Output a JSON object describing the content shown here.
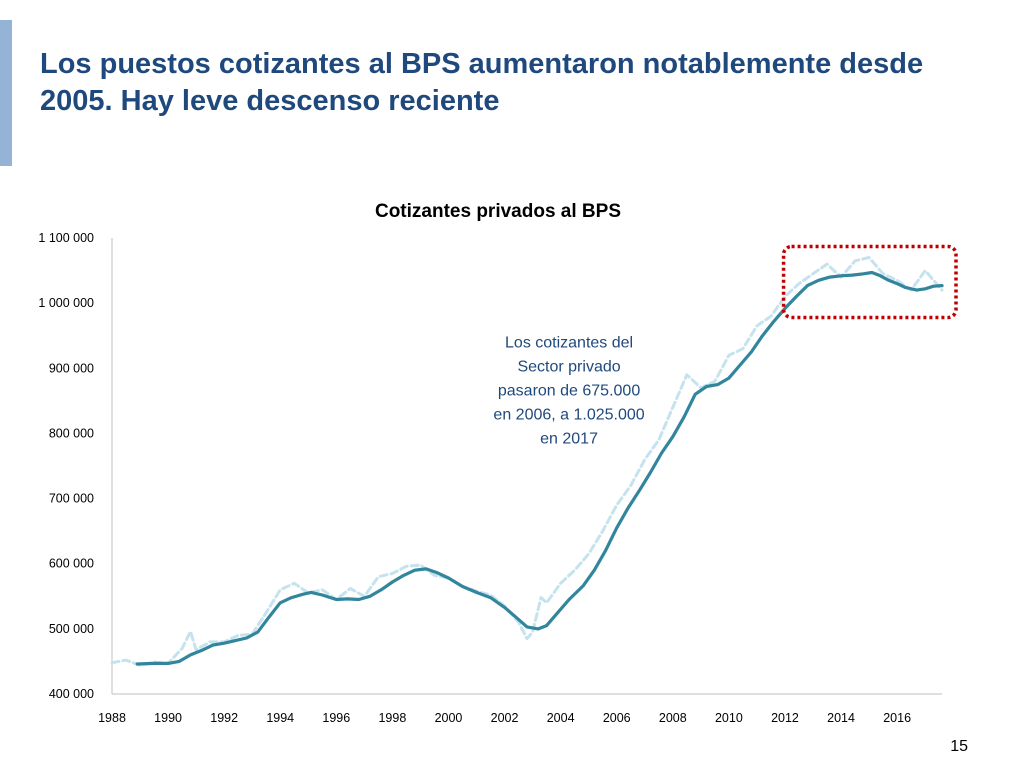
{
  "slide": {
    "title": "Los puestos cotizantes al BPS aumentaron notablemente desde 2005. Hay leve descenso reciente",
    "page_number": "15",
    "accent_color": "#95b3d7",
    "title_color": "#1f497d"
  },
  "chart_data": {
    "type": "line",
    "title": "Cotizantes privados al BPS",
    "xlabel": "",
    "ylabel": "",
    "xlim": [
      1988,
      2017.8
    ],
    "ylim": [
      400000,
      1100000
    ],
    "x_ticks": [
      1988,
      1990,
      1992,
      1994,
      1996,
      1998,
      2000,
      2002,
      2004,
      2006,
      2008,
      2010,
      2012,
      2014,
      2016
    ],
    "x_tick_labels": [
      "1988",
      "1990",
      "1992",
      "1994",
      "1996",
      "1998",
      "2000",
      "2002",
      "2004",
      "2006",
      "2008",
      "2010",
      "2012",
      "2014",
      "2016"
    ],
    "y_ticks": [
      400000,
      500000,
      600000,
      700000,
      800000,
      900000,
      1000000,
      1100000
    ],
    "y_tick_labels": [
      "400 000",
      "500 000",
      "600 000",
      "700 000",
      "800 000",
      "900 000",
      "1 000 000",
      "1 100 000"
    ],
    "grid": false,
    "legend": "none",
    "series": [
      {
        "style": "dashed",
        "color": "#c5e3ef",
        "points": [
          [
            1988.0,
            448000
          ],
          [
            1988.5,
            452000
          ],
          [
            1989.0,
            444000
          ],
          [
            1989.5,
            449000
          ],
          [
            1990.0,
            447000
          ],
          [
            1990.5,
            470000
          ],
          [
            1990.8,
            496000
          ],
          [
            1991.0,
            468000
          ],
          [
            1991.5,
            480000
          ],
          [
            1992.0,
            480000
          ],
          [
            1992.5,
            490000
          ],
          [
            1993.0,
            492000
          ],
          [
            1993.5,
            525000
          ],
          [
            1994.0,
            560000
          ],
          [
            1994.5,
            570000
          ],
          [
            1995.0,
            555000
          ],
          [
            1995.5,
            560000
          ],
          [
            1996.0,
            545000
          ],
          [
            1996.5,
            562000
          ],
          [
            1997.0,
            550000
          ],
          [
            1997.5,
            580000
          ],
          [
            1998.0,
            585000
          ],
          [
            1998.5,
            596000
          ],
          [
            1999.0,
            598000
          ],
          [
            1999.5,
            582000
          ],
          [
            2000.0,
            578000
          ],
          [
            2000.5,
            565000
          ],
          [
            2001.0,
            558000
          ],
          [
            2001.5,
            552000
          ],
          [
            2002.0,
            535000
          ],
          [
            2002.5,
            510000
          ],
          [
            2002.8,
            485000
          ],
          [
            2003.0,
            495000
          ],
          [
            2003.3,
            548000
          ],
          [
            2003.5,
            540000
          ],
          [
            2004.0,
            570000
          ],
          [
            2004.5,
            590000
          ],
          [
            2005.0,
            615000
          ],
          [
            2005.5,
            650000
          ],
          [
            2006.0,
            690000
          ],
          [
            2006.5,
            720000
          ],
          [
            2007.0,
            760000
          ],
          [
            2007.5,
            790000
          ],
          [
            2008.0,
            840000
          ],
          [
            2008.5,
            890000
          ],
          [
            2009.0,
            870000
          ],
          [
            2009.5,
            880000
          ],
          [
            2010.0,
            920000
          ],
          [
            2010.5,
            930000
          ],
          [
            2011.0,
            965000
          ],
          [
            2011.5,
            980000
          ],
          [
            2012.0,
            1010000
          ],
          [
            2012.5,
            1030000
          ],
          [
            2013.0,
            1045000
          ],
          [
            2013.5,
            1060000
          ],
          [
            2014.0,
            1040000
          ],
          [
            2014.5,
            1065000
          ],
          [
            2015.0,
            1070000
          ],
          [
            2015.5,
            1045000
          ],
          [
            2016.0,
            1035000
          ],
          [
            2016.5,
            1020000
          ],
          [
            2017.0,
            1050000
          ],
          [
            2017.3,
            1035000
          ],
          [
            2017.6,
            1020000
          ]
        ]
      },
      {
        "style": "solid",
        "color": "#31859c",
        "points": [
          [
            1988.9,
            446000
          ],
          [
            1989.5,
            447000
          ],
          [
            1990.0,
            447000
          ],
          [
            1990.4,
            450000
          ],
          [
            1990.8,
            460000
          ],
          [
            1991.2,
            467000
          ],
          [
            1991.6,
            475000
          ],
          [
            1992.0,
            478000
          ],
          [
            1992.4,
            482000
          ],
          [
            1992.8,
            486000
          ],
          [
            1993.2,
            495000
          ],
          [
            1993.6,
            518000
          ],
          [
            1994.0,
            540000
          ],
          [
            1994.4,
            548000
          ],
          [
            1994.8,
            553000
          ],
          [
            1995.1,
            556000
          ],
          [
            1995.5,
            552000
          ],
          [
            1996.0,
            545000
          ],
          [
            1996.4,
            546000
          ],
          [
            1996.8,
            545000
          ],
          [
            1997.2,
            550000
          ],
          [
            1997.6,
            560000
          ],
          [
            1998.0,
            572000
          ],
          [
            1998.4,
            582000
          ],
          [
            1998.8,
            590000
          ],
          [
            1999.2,
            592000
          ],
          [
            1999.6,
            586000
          ],
          [
            2000.0,
            578000
          ],
          [
            2000.5,
            565000
          ],
          [
            2001.0,
            556000
          ],
          [
            2001.5,
            548000
          ],
          [
            2002.0,
            533000
          ],
          [
            2002.4,
            518000
          ],
          [
            2002.8,
            503000
          ],
          [
            2003.2,
            500000
          ],
          [
            2003.5,
            505000
          ],
          [
            2003.9,
            525000
          ],
          [
            2004.3,
            545000
          ],
          [
            2004.8,
            566000
          ],
          [
            2005.2,
            590000
          ],
          [
            2005.6,
            620000
          ],
          [
            2006.0,
            655000
          ],
          [
            2006.4,
            685000
          ],
          [
            2006.8,
            712000
          ],
          [
            2007.2,
            740000
          ],
          [
            2007.6,
            770000
          ],
          [
            2008.0,
            795000
          ],
          [
            2008.4,
            825000
          ],
          [
            2008.8,
            860000
          ],
          [
            2009.2,
            872000
          ],
          [
            2009.6,
            875000
          ],
          [
            2010.0,
            885000
          ],
          [
            2010.4,
            905000
          ],
          [
            2010.8,
            925000
          ],
          [
            2011.2,
            950000
          ],
          [
            2011.6,
            972000
          ],
          [
            2012.0,
            992000
          ],
          [
            2012.4,
            1010000
          ],
          [
            2012.8,
            1027000
          ],
          [
            2013.2,
            1035000
          ],
          [
            2013.6,
            1040000
          ],
          [
            2014.0,
            1042000
          ],
          [
            2014.4,
            1043000
          ],
          [
            2014.8,
            1045000
          ],
          [
            2015.1,
            1047000
          ],
          [
            2015.4,
            1042000
          ],
          [
            2015.7,
            1035000
          ],
          [
            2016.0,
            1030000
          ],
          [
            2016.3,
            1024000
          ],
          [
            2016.7,
            1020000
          ],
          [
            2017.0,
            1022000
          ],
          [
            2017.3,
            1026000
          ],
          [
            2017.6,
            1027000
          ]
        ]
      }
    ],
    "annotation": {
      "lines": [
        "Los cotizantes del",
        "Sector privado",
        "pasaron de 675.000",
        "en 2006, a 1.025.000",
        "en 2017"
      ],
      "color": "#1f497d",
      "x": 2004.3,
      "y": 932000
    },
    "highlight_box": {
      "x0": 2011.95,
      "x1": 2018.4,
      "y0": 1087000,
      "y1": 978000,
      "color": "#c00000",
      "style": "dotted"
    }
  }
}
